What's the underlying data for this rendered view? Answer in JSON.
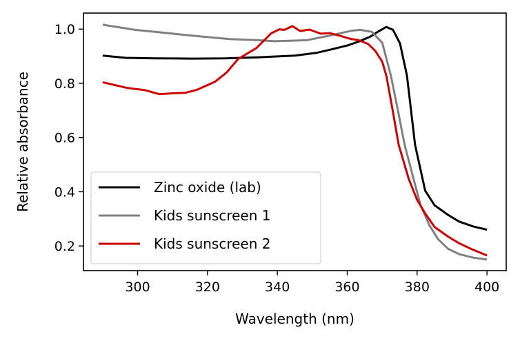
{
  "chart_data": {
    "type": "line",
    "title": "",
    "xlabel": "Wavelength (nm)",
    "ylabel": "Relative absorbance",
    "xlim": [
      284.5,
      405.5
    ],
    "ylim": [
      0.109,
      1.059
    ],
    "xticks": [
      300,
      320,
      340,
      360,
      380,
      400
    ],
    "yticks": [
      0.2,
      0.4,
      0.6,
      0.8,
      1.0
    ],
    "xtick_labels": [
      "300",
      "320",
      "340",
      "360",
      "380",
      "400"
    ],
    "ytick_labels": [
      "0.2",
      "0.4",
      "0.6",
      "0.8",
      "1.0"
    ],
    "grid": false,
    "legend_position": "bottom-left",
    "series": [
      {
        "name": "Zinc oxide (lab)",
        "color": "#000000",
        "x": [
          290,
          296.6,
          305,
          315.6,
          325,
          334.5,
          345,
          351,
          355.4,
          360.2,
          363.5,
          366.6,
          369,
          371.2,
          373.1,
          375.1,
          377.1,
          379.4,
          382.3,
          385,
          388.8,
          392,
          396,
          400
        ],
        "y": [
          0.902,
          0.894,
          0.892,
          0.891,
          0.892,
          0.896,
          0.902,
          0.912,
          0.925,
          0.94,
          0.955,
          0.972,
          0.992,
          1.008,
          0.997,
          0.947,
          0.828,
          0.574,
          0.404,
          0.35,
          0.315,
          0.29,
          0.272,
          0.26
        ]
      },
      {
        "name": "Kids sunscreen 1",
        "color": "#808080",
        "x": [
          290,
          299.3,
          307,
          315.6,
          326.3,
          333,
          339.3,
          348.4,
          355,
          361.2,
          363.7,
          367,
          370,
          372.5,
          374.5,
          376.4,
          379,
          381,
          383.5,
          386,
          388.8,
          392,
          396,
          400
        ],
        "y": [
          1.016,
          0.997,
          0.987,
          0.976,
          0.963,
          0.96,
          0.955,
          0.959,
          0.976,
          0.994,
          0.997,
          0.99,
          0.95,
          0.828,
          0.7,
          0.574,
          0.447,
          0.35,
          0.277,
          0.225,
          0.19,
          0.17,
          0.157,
          0.15
        ]
      },
      {
        "name": "Kids sunscreen 2",
        "color": "#cc0000",
        "x": [
          290,
          296.7,
          298.6,
          302,
          306.2,
          310,
          313.7,
          317,
          322.2,
          325.5,
          328.8,
          334,
          338.3,
          340.6,
          342,
          344.3,
          346.5,
          349.2,
          352.4,
          355,
          358,
          361.2,
          363.1,
          366,
          368,
          370,
          371.2,
          373,
          374.7,
          377.6,
          380,
          382.3,
          385,
          388.8,
          392,
          395.3,
          400
        ],
        "y": [
          0.804,
          0.784,
          0.78,
          0.775,
          0.76,
          0.763,
          0.765,
          0.776,
          0.806,
          0.84,
          0.89,
          0.93,
          0.985,
          0.999,
          0.997,
          1.011,
          0.993,
          0.998,
          0.983,
          0.985,
          0.975,
          0.963,
          0.96,
          0.945,
          0.92,
          0.88,
          0.828,
          0.7,
          0.574,
          0.447,
          0.37,
          0.32,
          0.27,
          0.235,
          0.21,
          0.19,
          0.165
        ]
      }
    ]
  }
}
